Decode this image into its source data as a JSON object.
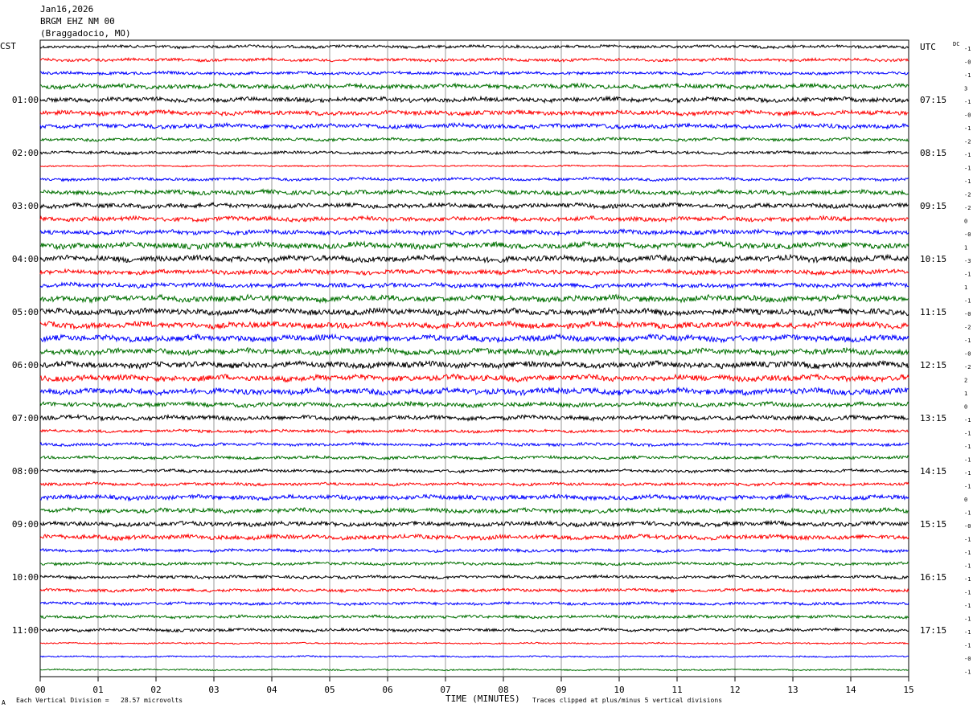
{
  "header": {
    "date": "Jan16,2026",
    "station": "BRGM EHZ NM 00",
    "location": "(Braggadocio, MO)"
  },
  "left_tz": "CST",
  "right_tz": "UTC",
  "dc_label": "DC",
  "footer": {
    "scale_note": "Each Vertical Division =   28.57 microvolts",
    "clip_note": "Traces clipped at plus/minus 5 vertical divisions",
    "corner_mark": "A"
  },
  "chart_data": {
    "type": "line",
    "title": "",
    "xlabel": "TIME (MINUTES)",
    "xlim": [
      0,
      15
    ],
    "x_ticks": [
      "00",
      "01",
      "02",
      "03",
      "04",
      "05",
      "06",
      "07",
      "08",
      "09",
      "10",
      "11",
      "12",
      "13",
      "14",
      "15"
    ],
    "trace_count": 48,
    "trace_colors": [
      "#000000",
      "#ff0000",
      "#0000ff",
      "#007000"
    ],
    "left_hour_labels": [
      {
        "trace": 4,
        "label": "01:00"
      },
      {
        "trace": 8,
        "label": "02:00"
      },
      {
        "trace": 12,
        "label": "03:00"
      },
      {
        "trace": 16,
        "label": "04:00"
      },
      {
        "trace": 20,
        "label": "05:00"
      },
      {
        "trace": 24,
        "label": "06:00"
      },
      {
        "trace": 28,
        "label": "07:00"
      },
      {
        "trace": 32,
        "label": "08:00"
      },
      {
        "trace": 36,
        "label": "09:00"
      },
      {
        "trace": 40,
        "label": "10:00"
      },
      {
        "trace": 44,
        "label": "11:00"
      }
    ],
    "right_hour_labels": [
      {
        "trace": 0,
        "label": "UTC"
      },
      {
        "trace": 4,
        "label": "07:15"
      },
      {
        "trace": 8,
        "label": "08:15"
      },
      {
        "trace": 12,
        "label": "09:15"
      },
      {
        "trace": 16,
        "label": "10:15"
      },
      {
        "trace": 20,
        "label": "11:15"
      },
      {
        "trace": 24,
        "label": "12:15"
      },
      {
        "trace": 28,
        "label": "13:15"
      },
      {
        "trace": 32,
        "label": "14:15"
      },
      {
        "trace": 36,
        "label": "15:15"
      },
      {
        "trace": 40,
        "label": "16:15"
      },
      {
        "trace": 44,
        "label": "17:15"
      }
    ],
    "dc_offsets": [
      "-1",
      "-0",
      "-1",
      "3",
      "-1",
      "-0",
      "-1",
      "-2",
      "-1",
      "-1",
      "-1",
      "-2",
      "-2",
      "0",
      "-0",
      "1",
      "-3",
      "-1",
      "1",
      "-1",
      "-0",
      "-2",
      "-1",
      "-0",
      "-2",
      "2",
      "1",
      "0",
      "-1",
      "-1",
      "-1",
      "-1",
      "-1",
      "-1",
      "0",
      "-1",
      "-0",
      "-1",
      "-1",
      "-1",
      "-1",
      "-1",
      "-1",
      "-1",
      "-1",
      "-1",
      "-0",
      "-1"
    ],
    "amplitude_profile": [
      2,
      2,
      2,
      3,
      3,
      3,
      3,
      2,
      2,
      1,
      2,
      3,
      3,
      3,
      3,
      4,
      4,
      3,
      3,
      4,
      4,
      4,
      4,
      4,
      4,
      4,
      4,
      3,
      3,
      2,
      2,
      2,
      2,
      2,
      3,
      3,
      3,
      3,
      2,
      2,
      2,
      2,
      2,
      2,
      2,
      1,
      1,
      1
    ]
  }
}
